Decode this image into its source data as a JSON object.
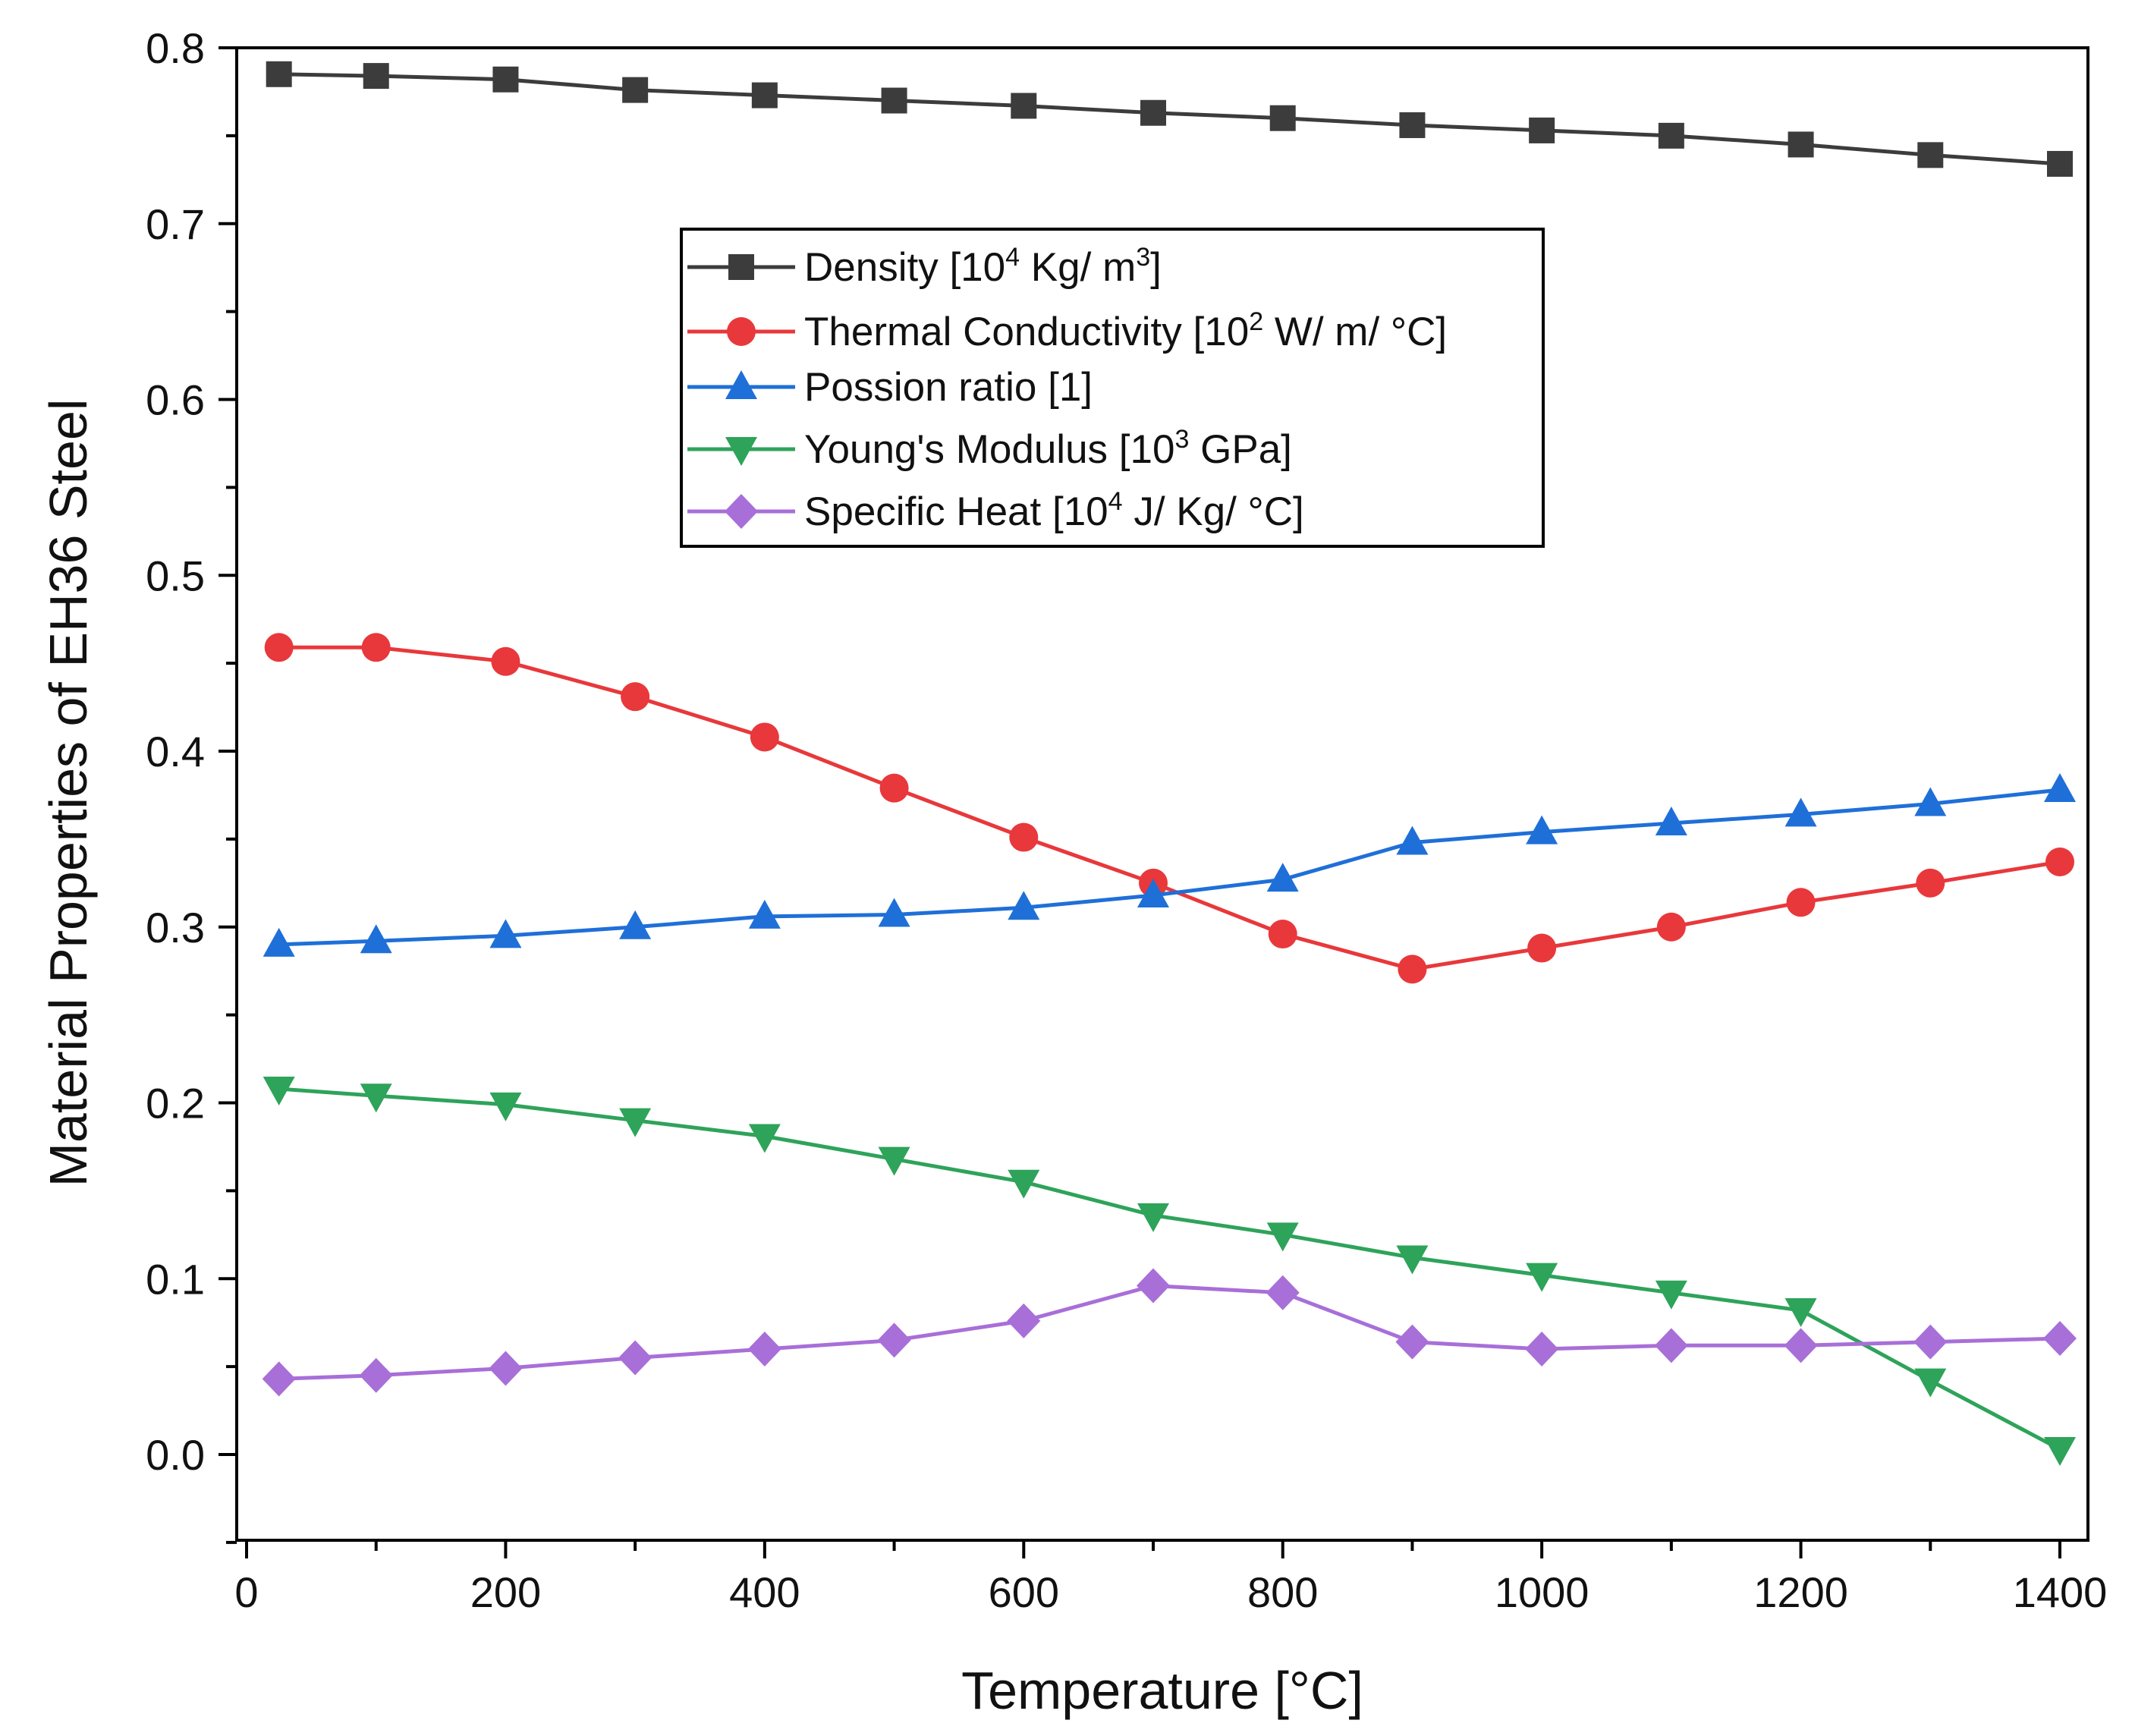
{
  "chart_data": {
    "type": "line",
    "title": "",
    "xlabel": "Temperature [°C]",
    "ylabel": "Material Properties of EH36 Steel",
    "xlim": [
      -10,
      1410
    ],
    "ylim": [
      -0.05,
      0.8
    ],
    "xticks": [
      0,
      200,
      400,
      600,
      800,
      1000,
      1200,
      1400
    ],
    "xtick_labels": [
      "0",
      "200",
      "400",
      "600",
      "800",
      "1000",
      "1200",
      "1400"
    ],
    "yticks": [
      0.0,
      0.1,
      0.2,
      0.3,
      0.4,
      0.5,
      0.6,
      0.7,
      0.8
    ],
    "ytick_labels": [
      "0.0",
      "0.1",
      "0.2",
      "0.3",
      "0.4",
      "0.5",
      "0.6",
      "0.7",
      "0.8"
    ],
    "legend_position": "upper-center",
    "grid": false,
    "x": [
      25,
      100,
      200,
      300,
      400,
      500,
      600,
      700,
      800,
      900,
      1000,
      1100,
      1200,
      1300,
      1400
    ],
    "series": [
      {
        "name": "Density",
        "legend": {
          "pre": "Density [10",
          "sup1": "4",
          "mid": " Kg/ m",
          "sup2": "3",
          "post": "]"
        },
        "color": "#3c3c3c",
        "marker": "square",
        "values": [
          0.785,
          0.784,
          0.782,
          0.776,
          0.773,
          0.77,
          0.767,
          0.763,
          0.76,
          0.756,
          0.753,
          0.75,
          0.745,
          0.739,
          0.734
        ]
      },
      {
        "name": "Thermal Conductivity",
        "legend": {
          "pre": "Thermal Conductivity [10",
          "sup1": "2",
          "mid": " W/ m/ °C]",
          "sup2": "",
          "post": ""
        },
        "color": "#e8383b",
        "marker": "circle",
        "values": [
          0.459,
          0.459,
          0.451,
          0.431,
          0.408,
          0.379,
          0.351,
          0.325,
          0.296,
          0.276,
          0.288,
          0.3,
          0.314,
          0.325,
          0.337
        ]
      },
      {
        "name": "Possion ratio",
        "legend": {
          "pre": "Possion ratio [1]",
          "sup1": "",
          "mid": "",
          "sup2": "",
          "post": ""
        },
        "color": "#1f6fd8",
        "marker": "triangle-up",
        "values": [
          0.29,
          0.292,
          0.295,
          0.3,
          0.306,
          0.307,
          0.311,
          0.318,
          0.327,
          0.348,
          0.354,
          0.359,
          0.364,
          0.37,
          0.378
        ]
      },
      {
        "name": "Young's Modulus",
        "legend": {
          "pre": "Young's Modulus [10",
          "sup1": "3",
          "mid": " GPa]",
          "sup2": "",
          "post": ""
        },
        "color": "#2ea35a",
        "marker": "triangle-down",
        "values": [
          0.208,
          0.204,
          0.199,
          0.19,
          0.181,
          0.168,
          0.155,
          0.136,
          0.125,
          0.112,
          0.102,
          0.092,
          0.082,
          0.042,
          0.003
        ]
      },
      {
        "name": "Specific Heat",
        "legend": {
          "pre": "Specific Heat [10",
          "sup1": "4",
          "mid": " J/ Kg/ °C]",
          "sup2": "",
          "post": ""
        },
        "color": "#a86fd8",
        "marker": "diamond",
        "values": [
          0.043,
          0.045,
          0.049,
          0.055,
          0.06,
          0.065,
          0.076,
          0.096,
          0.092,
          0.064,
          0.06,
          0.062,
          0.062,
          0.064,
          0.066
        ]
      }
    ]
  }
}
